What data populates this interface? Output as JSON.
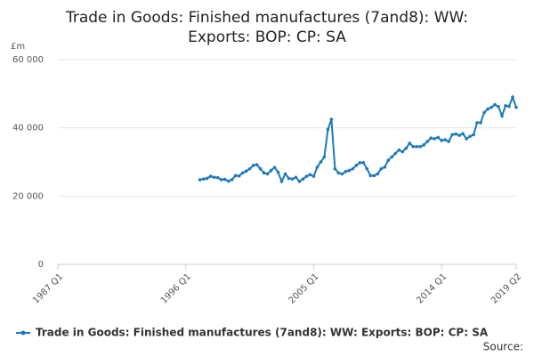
{
  "chart_data": {
    "type": "line",
    "title": "Trade in Goods: Finished manufactures (7and8): WW: Exports: BOP: CP: SA",
    "y_label": "£m",
    "source": "Source:",
    "categories": [
      "1987 Q1",
      null,
      null,
      null,
      null,
      null,
      null,
      null,
      null,
      null,
      null,
      null,
      null,
      null,
      null,
      null,
      null,
      null,
      null,
      null,
      null,
      null,
      null,
      null,
      null,
      null,
      null,
      null,
      null,
      null,
      null,
      null,
      null,
      null,
      null,
      null,
      "1996 Q1",
      null,
      null,
      null,
      null,
      null,
      null,
      null,
      null,
      null,
      null,
      null,
      null,
      null,
      null,
      null,
      null,
      null,
      null,
      null,
      null,
      null,
      null,
      null,
      null,
      null,
      null,
      null,
      null,
      null,
      null,
      null,
      null,
      null,
      null,
      null,
      "2005 Q1",
      null,
      null,
      null,
      null,
      null,
      null,
      null,
      null,
      null,
      null,
      null,
      null,
      null,
      null,
      null,
      null,
      null,
      null,
      null,
      null,
      null,
      null,
      null,
      null,
      null,
      null,
      null,
      null,
      null,
      null,
      null,
      null,
      null,
      null,
      null,
      "2014 Q1",
      null,
      null,
      null,
      null,
      null,
      null,
      null,
      null,
      null,
      null,
      null,
      null,
      null,
      null,
      null,
      null,
      null,
      null,
      null,
      null,
      "2019 Q2"
    ],
    "series": [
      {
        "name": "Trade in Goods: Finished manufactures (7and8): WW: Exports: BOP: CP: SA",
        "color": "#1f7ab8",
        "values": [
          null,
          null,
          null,
          null,
          null,
          null,
          null,
          null,
          null,
          null,
          null,
          null,
          null,
          null,
          null,
          null,
          null,
          null,
          null,
          null,
          null,
          null,
          null,
          null,
          null,
          null,
          null,
          null,
          null,
          null,
          null,
          null,
          null,
          null,
          null,
          null,
          null,
          null,
          null,
          null,
          24800,
          25000,
          25200,
          25800,
          25500,
          25400,
          24800,
          24900,
          24400,
          24800,
          26000,
          25900,
          26800,
          27300,
          28000,
          29000,
          29200,
          28000,
          26800,
          26500,
          27500,
          28400,
          27000,
          24300,
          26500,
          25200,
          25000,
          25500,
          24300,
          25000,
          25800,
          26300,
          25800,
          28500,
          30000,
          31500,
          39500,
          42500,
          28000,
          26800,
          26500,
          27200,
          27500,
          28000,
          29000,
          29800,
          29800,
          28000,
          26000,
          26000,
          26500,
          28000,
          28500,
          30500,
          31500,
          32500,
          33500,
          33000,
          34000,
          35500,
          34500,
          34500,
          34500,
          35000,
          36000,
          37000,
          36800,
          37200,
          36300,
          36500,
          36000,
          38000,
          38200,
          37800,
          38300,
          36800,
          37500,
          38000,
          41500,
          41500,
          44500,
          45500,
          46000,
          46800,
          46200,
          43500,
          46500,
          46300,
          49000,
          46000
        ]
      }
    ],
    "ylim": [
      0,
      60000
    ],
    "yticks": [
      0,
      {
        "value": 20000,
        "label": "20 000"
      },
      {
        "value": 40000,
        "label": "40 000"
      },
      {
        "value": 60000,
        "label": "60 000"
      }
    ],
    "grid": true
  }
}
